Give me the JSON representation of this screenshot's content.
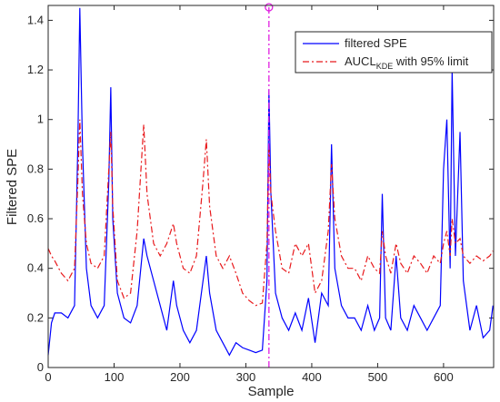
{
  "chart_data": {
    "type": "line",
    "xlabel": "Sample",
    "ylabel": "Filtered SPE",
    "x": [
      0,
      5,
      10,
      20,
      30,
      40,
      45,
      48,
      52,
      58,
      65,
      75,
      85,
      92,
      95,
      98,
      105,
      115,
      125,
      135,
      145,
      150,
      160,
      170,
      180,
      190,
      195,
      205,
      215,
      225,
      235,
      240,
      245,
      255,
      265,
      275,
      285,
      295,
      305,
      315,
      325,
      332,
      335,
      338,
      345,
      355,
      365,
      375,
      385,
      395,
      405,
      415,
      425,
      430,
      435,
      445,
      455,
      465,
      475,
      485,
      495,
      503,
      507,
      512,
      520,
      528,
      535,
      545,
      555,
      565,
      575,
      585,
      595,
      600,
      605,
      610,
      613,
      618,
      625,
      630,
      640,
      650,
      660,
      670,
      675
    ],
    "series": [
      {
        "name": "filtered SPE",
        "color": "#0000ff",
        "dash": "solid",
        "values": [
          0.05,
          0.18,
          0.22,
          0.22,
          0.2,
          0.25,
          0.9,
          1.45,
          0.9,
          0.4,
          0.25,
          0.2,
          0.25,
          0.75,
          1.13,
          0.6,
          0.3,
          0.2,
          0.18,
          0.25,
          0.52,
          0.45,
          0.35,
          0.25,
          0.15,
          0.35,
          0.25,
          0.15,
          0.1,
          0.15,
          0.35,
          0.45,
          0.3,
          0.15,
          0.1,
          0.05,
          0.1,
          0.08,
          0.07,
          0.06,
          0.07,
          0.35,
          1.12,
          0.7,
          0.3,
          0.2,
          0.15,
          0.22,
          0.15,
          0.28,
          0.1,
          0.3,
          0.25,
          0.9,
          0.4,
          0.25,
          0.2,
          0.2,
          0.15,
          0.25,
          0.15,
          0.2,
          0.7,
          0.2,
          0.15,
          0.45,
          0.2,
          0.15,
          0.25,
          0.2,
          0.15,
          0.2,
          0.25,
          0.8,
          1.0,
          0.4,
          1.2,
          0.45,
          0.95,
          0.35,
          0.15,
          0.25,
          0.12,
          0.15,
          0.25
        ]
      },
      {
        "name": "AUCL",
        "name_subscript": "KDE",
        "name_rest": " with 95% limit",
        "color": "#e8191c",
        "dash": "dashdot",
        "values": [
          0.48,
          0.45,
          0.43,
          0.38,
          0.35,
          0.4,
          0.75,
          1.0,
          0.7,
          0.5,
          0.42,
          0.4,
          0.45,
          0.8,
          0.95,
          0.65,
          0.35,
          0.28,
          0.3,
          0.55,
          0.98,
          0.7,
          0.5,
          0.45,
          0.5,
          0.58,
          0.5,
          0.4,
          0.38,
          0.45,
          0.75,
          0.92,
          0.65,
          0.45,
          0.4,
          0.45,
          0.38,
          0.3,
          0.27,
          0.25,
          0.26,
          0.5,
          0.9,
          0.7,
          0.55,
          0.4,
          0.38,
          0.5,
          0.45,
          0.5,
          0.3,
          0.35,
          0.55,
          0.82,
          0.6,
          0.45,
          0.4,
          0.4,
          0.35,
          0.45,
          0.4,
          0.38,
          0.55,
          0.45,
          0.38,
          0.5,
          0.42,
          0.38,
          0.45,
          0.42,
          0.38,
          0.45,
          0.42,
          0.5,
          0.55,
          0.45,
          0.6,
          0.5,
          0.52,
          0.45,
          0.42,
          0.45,
          0.43,
          0.45,
          0.47
        ]
      }
    ],
    "vline_x": 335,
    "vline_color": "#e020e0",
    "xlim": [
      0,
      676
    ],
    "xticks": [
      0,
      100,
      200,
      300,
      400,
      500,
      600
    ],
    "ylim": [
      0,
      1.46
    ],
    "yticks": [
      0,
      0.2,
      0.4,
      0.6,
      0.8,
      1,
      1.2,
      1.4
    ],
    "legend": "upper right"
  }
}
